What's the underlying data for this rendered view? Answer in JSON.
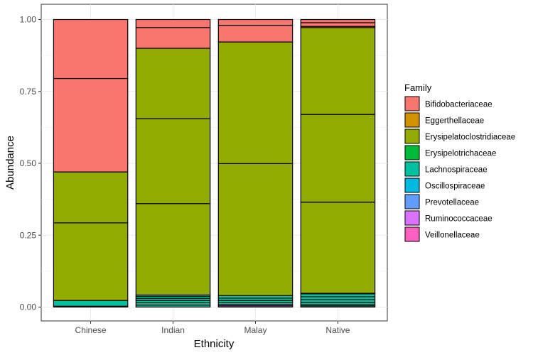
{
  "chart_data": {
    "type": "bar",
    "stacked": true,
    "xlabel": "Ethnicity",
    "ylabel": "Abundance",
    "ylim": [
      0,
      1
    ],
    "yticks": [
      "0.00",
      "0.25",
      "0.50",
      "0.75",
      "1.00"
    ],
    "grid": true,
    "legend_position": "right",
    "legend_title": "Family",
    "categories": [
      "Chinese",
      "Indian",
      "Malay",
      "Native"
    ],
    "families": [
      {
        "name": "Bifidobacteriaceae",
        "color": "#F8766D"
      },
      {
        "name": "Eggerthellaceae",
        "color": "#D39200"
      },
      {
        "name": "Erysipelatoclostridiaceae",
        "color": "#93AA00"
      },
      {
        "name": "Erysipelotrichaceae",
        "color": "#00BA38"
      },
      {
        "name": "Lachnospiraceae",
        "color": "#00C19F"
      },
      {
        "name": "Oscillospiraceae",
        "color": "#00B9E3"
      },
      {
        "name": "Prevotellaceae",
        "color": "#619CFF"
      },
      {
        "name": "Ruminococcaceae",
        "color": "#DB72FB"
      },
      {
        "name": "Veillonellaceae",
        "color": "#FF61C3"
      }
    ],
    "segments": {
      "Chinese": [
        {
          "family": "Ruminococcaceae",
          "value": 0.003
        },
        {
          "family": "Lachnospiraceae",
          "value": 0.02
        },
        {
          "family": "Erysipelatoclostridiaceae",
          "value": 0.27
        },
        {
          "family": "Erysipelatoclostridiaceae",
          "value": 0.177
        },
        {
          "family": "Bifidobacteriaceae",
          "value": 0.325
        },
        {
          "family": "Bifidobacteriaceae",
          "value": 0.205
        }
      ],
      "Indian": [
        {
          "family": "Lachnospiraceae",
          "value": 0.007
        },
        {
          "family": "Lachnospiraceae",
          "value": 0.008
        },
        {
          "family": "Lachnospiraceae",
          "value": 0.008
        },
        {
          "family": "Lachnospiraceae",
          "value": 0.007
        },
        {
          "family": "Lachnospiraceae",
          "value": 0.007
        },
        {
          "family": "Lachnospiraceae",
          "value": 0.005
        },
        {
          "family": "Erysipelatoclostridiaceae",
          "value": 0.318
        },
        {
          "family": "Erysipelatoclostridiaceae",
          "value": 0.295
        },
        {
          "family": "Erysipelatoclostridiaceae",
          "value": 0.245
        },
        {
          "family": "Bifidobacteriaceae",
          "value": 0.072
        },
        {
          "family": "Bifidobacteriaceae",
          "value": 0.028
        }
      ],
      "Malay": [
        {
          "family": "Ruminococcaceae",
          "value": 0.004
        },
        {
          "family": "Ruminococcaceae",
          "value": 0.004
        },
        {
          "family": "Lachnospiraceae",
          "value": 0.007
        },
        {
          "family": "Lachnospiraceae",
          "value": 0.008
        },
        {
          "family": "Lachnospiraceae",
          "value": 0.008
        },
        {
          "family": "Lachnospiraceae",
          "value": 0.009
        },
        {
          "family": "Erysipelatoclostridiaceae",
          "value": 0.459
        },
        {
          "family": "Erysipelatoclostridiaceae",
          "value": 0.423
        },
        {
          "family": "Bifidobacteriaceae",
          "value": 0.058
        },
        {
          "family": "Bifidobacteriaceae",
          "value": 0.02
        }
      ],
      "Native": [
        {
          "family": "Lachnospiraceae",
          "value": 0.004
        },
        {
          "family": "Lachnospiraceae",
          "value": 0.004
        },
        {
          "family": "Lachnospiraceae",
          "value": 0.008
        },
        {
          "family": "Lachnospiraceae",
          "value": 0.01
        },
        {
          "family": "Lachnospiraceae",
          "value": 0.01
        },
        {
          "family": "Lachnospiraceae",
          "value": 0.01
        },
        {
          "family": "Lachnospiraceae",
          "value": 0.002
        },
        {
          "family": "Erysipelatoclostridiaceae",
          "value": 0.317
        },
        {
          "family": "Erysipelatoclostridiaceae",
          "value": 0.305
        },
        {
          "family": "Erysipelatoclostridiaceae",
          "value": 0.302
        },
        {
          "family": "Bifidobacteriaceae",
          "value": 0.004
        },
        {
          "family": "Bifidobacteriaceae",
          "value": 0.013
        },
        {
          "family": "Bifidobacteriaceae",
          "value": 0.011
        }
      ]
    }
  }
}
